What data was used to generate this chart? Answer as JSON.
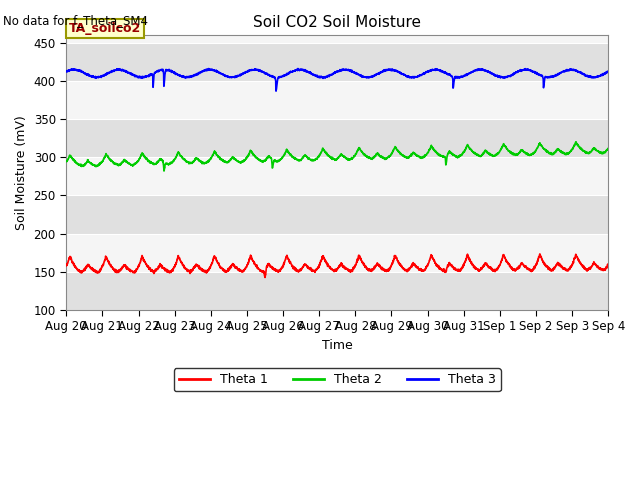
{
  "title": "Soil CO2 Soil Moisture",
  "top_left_text": "No data for f_Theta_SM4",
  "legend_box_text": "TA_soilco2",
  "xlabel": "Time",
  "ylabel": "Soil Moisture (mV)",
  "ylim": [
    100,
    460
  ],
  "yticks": [
    100,
    150,
    200,
    250,
    300,
    350,
    400,
    450
  ],
  "bg_color": "#ebebeb",
  "bg_band_light": "#f5f5f5",
  "bg_band_dark": "#e0e0e0",
  "line_colors": {
    "theta1": "red",
    "theta2": "#00cc00",
    "theta3": "blue"
  },
  "legend_labels": [
    "Theta 1",
    "Theta 2",
    "Theta 3"
  ],
  "legend_colors": [
    "red",
    "#00cc00",
    "blue"
  ],
  "theta1_base": 147,
  "theta1_peak": 170,
  "theta2_base": 287,
  "theta2_peak": 303,
  "theta3_base": 408,
  "theta3_variation": 5,
  "num_days": 15,
  "tick_labels": [
    "Aug 20",
    "Aug 21",
    "Aug 22",
    "Aug 23",
    "Aug 24",
    "Aug 25",
    "Aug 26",
    "Aug 27",
    "Aug 28",
    "Aug 29",
    "Aug 30",
    "Aug 31",
    "Sep 1",
    "Sep 2",
    "Sep 3",
    "Sep 4"
  ],
  "figsize": [
    6.4,
    4.8
  ],
  "dpi": 100
}
